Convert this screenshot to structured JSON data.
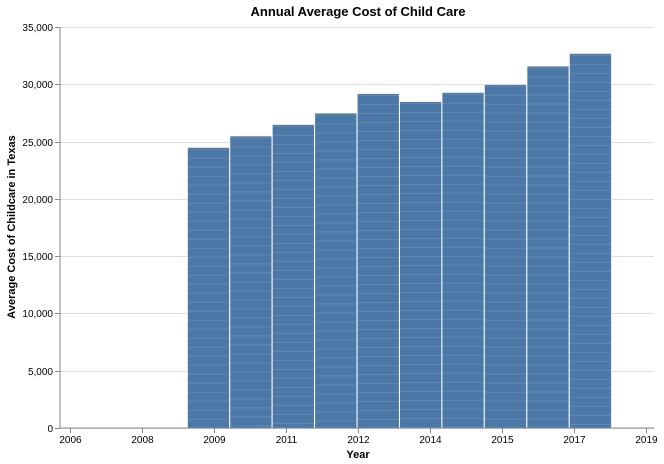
{
  "chart_data": {
    "type": "bar",
    "title": "Annual Average Cost of Child Care",
    "xlabel": "Year",
    "ylabel": "Average Cost of Childcare in Texas",
    "x_tick_labels": [
      "2006",
      "2008",
      "2009",
      "2011",
      "2012",
      "2014",
      "2015",
      "2017",
      "2019"
    ],
    "y_tick_labels": [
      "0",
      "5,000",
      "10,000",
      "15,000",
      "20,000",
      "25,000",
      "30,000",
      "35,000"
    ],
    "y_ticks": [
      0,
      5000,
      10000,
      15000,
      20000,
      25000,
      30000,
      35000
    ],
    "ylim": [
      0,
      35000
    ],
    "xlim": [
      "2006-01-01",
      "2019-12-31"
    ],
    "grid": true,
    "series": [
      {
        "x_start": [
          "2009-01-01",
          "2010-01-01",
          "2011-01-01",
          "2012-01-01",
          "2013-01-01",
          "2014-01-01",
          "2015-01-01",
          "2016-01-01",
          "2017-01-01",
          "2018-01-01"
        ],
        "x_end": [
          "2009-12-31",
          "2010-12-31",
          "2011-12-31",
          "2012-12-31",
          "2013-12-31",
          "2014-12-31",
          "2015-12-31",
          "2016-12-31",
          "2017-12-31",
          "2018-12-31"
        ],
        "values": [
          24500,
          25500,
          26500,
          27500,
          29200,
          28500,
          29300,
          30000,
          31600,
          32700
        ],
        "color": "#4c78a8"
      }
    ]
  }
}
